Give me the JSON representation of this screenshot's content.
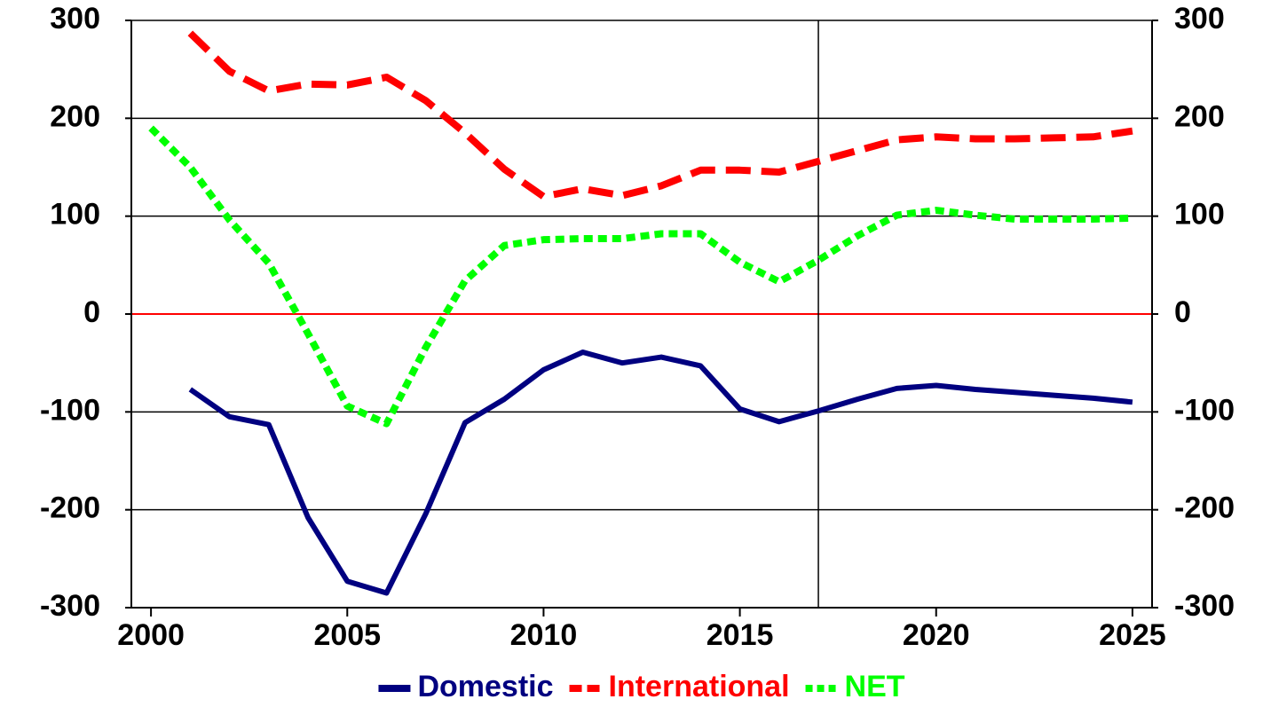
{
  "chart_data": {
    "type": "line",
    "x": [
      2000,
      2001,
      2002,
      2003,
      2004,
      2005,
      2006,
      2007,
      2008,
      2009,
      2010,
      2011,
      2012,
      2013,
      2014,
      2015,
      2016,
      2017,
      2018,
      2019,
      2020,
      2021,
      2022,
      2023,
      2024,
      2025
    ],
    "series": [
      {
        "name": "Domestic",
        "color": "#000080",
        "dash": "solid",
        "values": [
          null,
          -77,
          -105,
          -113,
          -208,
          -273,
          -285,
          -204,
          -111,
          -87,
          -57,
          -39,
          -50,
          -44,
          -53,
          -97,
          -110,
          -99,
          -87,
          -76,
          -73,
          -77,
          -80,
          -83,
          -86,
          -90
        ]
      },
      {
        "name": "International",
        "color": "#ff0000",
        "dash": "dashed",
        "values": [
          null,
          287,
          248,
          228,
          235,
          234,
          242,
          218,
          185,
          148,
          120,
          128,
          121,
          131,
          147,
          147,
          145,
          156,
          167,
          178,
          181,
          179,
          179,
          180,
          181,
          187
        ]
      },
      {
        "name": "NET",
        "color": "#00ff00",
        "dash": "dotted",
        "values": [
          190,
          150,
          96,
          52,
          -20,
          -94,
          -112,
          -34,
          34,
          70,
          76,
          77,
          77,
          82,
          82,
          53,
          33,
          55,
          80,
          101,
          106,
          101,
          97,
          97,
          97,
          98
        ]
      }
    ],
    "xlim": [
      1999.5,
      2025.5
    ],
    "xticks": [
      2000,
      2005,
      2010,
      2015,
      2020,
      2025
    ],
    "ylim": [
      -300,
      300
    ],
    "yticks": [
      -300,
      -200,
      -100,
      0,
      100,
      200,
      300
    ],
    "y2lim": [
      -300,
      300
    ],
    "y2ticks": [
      -300,
      -200,
      -100,
      0,
      100,
      200,
      300
    ],
    "grid": true,
    "zero_line_color": "#ff0000",
    "vline": 2017,
    "legend": "bottom"
  }
}
